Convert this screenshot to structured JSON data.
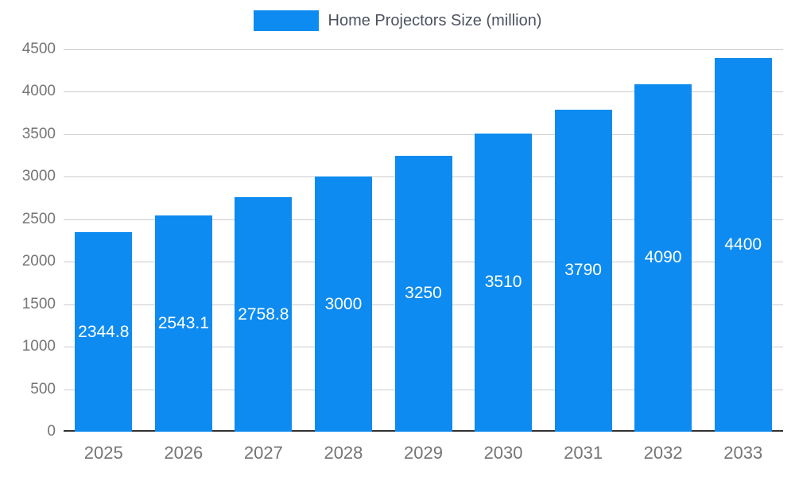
{
  "chart_data": {
    "type": "bar",
    "title": "Home Projectors Size (million)",
    "xlabel": "",
    "ylabel": "",
    "categories": [
      "2025",
      "2026",
      "2027",
      "2028",
      "2029",
      "2030",
      "2031",
      "2032",
      "2033"
    ],
    "values": [
      2344.8,
      2543.1,
      2758.8,
      3000,
      3250,
      3510,
      3790,
      4090,
      4400
    ],
    "value_labels": [
      "2344.8",
      "2543.1",
      "2758.8",
      "3000",
      "3250",
      "3510",
      "3790",
      "4090",
      "4400"
    ],
    "ylim": [
      0,
      4500
    ],
    "ytick_step": 500,
    "yticks": [
      0,
      500,
      1000,
      1500,
      2000,
      2500,
      3000,
      3500,
      4000,
      4500
    ],
    "grid": true,
    "legend_position": "top",
    "colors": {
      "bar": "#0d8bf0",
      "grid": "#cccccc",
      "axis_line": "#333333",
      "tick_text": "#757575",
      "legend_text": "#4d5360",
      "value_label_text": "#ffffff",
      "background": "#ffffff"
    }
  }
}
